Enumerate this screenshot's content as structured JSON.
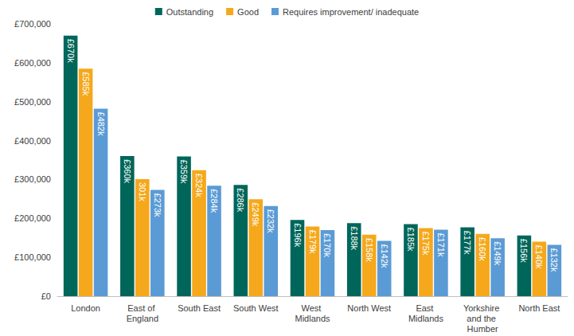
{
  "chart_data": {
    "type": "bar",
    "categories": [
      "London",
      "East of England",
      "South East",
      "South West",
      "West Midlands",
      "North West",
      "East Midlands",
      "Yorkshire and the Humber",
      "North East"
    ],
    "series": [
      {
        "name": "Outstanding",
        "color": "#00665a",
        "values": [
          670000,
          360000,
          359000,
          286000,
          196000,
          188000,
          185000,
          177000,
          156000
        ],
        "value_labels": [
          "£670k",
          "£360k",
          "£359k",
          "£286k",
          "£196k",
          "£188k",
          "£185k",
          "£177k",
          "£156k"
        ]
      },
      {
        "name": "Good",
        "color": "#f5a81c",
        "values": [
          585000,
          301000,
          324000,
          249000,
          179000,
          158000,
          175000,
          160000,
          140000
        ],
        "value_labels": [
          "£585k",
          "301k",
          "£324k",
          "£249k",
          "£179k",
          "£158k",
          "£175k",
          "£160k",
          "£140k"
        ]
      },
      {
        "name": "Requires improvement/ inadequate",
        "color": "#5b9bd5",
        "values": [
          482000,
          273000,
          284000,
          232000,
          170000,
          142000,
          171000,
          149000,
          132000
        ],
        "value_labels": [
          "£482k",
          "£273k",
          "£284k",
          "£232k",
          "£170k",
          "£142k",
          "£171k",
          "£149k",
          "£132k"
        ]
      }
    ],
    "ylim": [
      0,
      700000
    ],
    "yticks": [
      {
        "value": 0,
        "label": "£0"
      },
      {
        "value": 100000,
        "label": "£100,000"
      },
      {
        "value": 200000,
        "label": "£200,000"
      },
      {
        "value": 300000,
        "label": "£300,000"
      },
      {
        "value": 400000,
        "label": "£400,000"
      },
      {
        "value": 500000,
        "label": "£500,000"
      },
      {
        "value": 600000,
        "label": "£600,000"
      },
      {
        "value": 700000,
        "label": "£700,000"
      }
    ],
    "grid": false,
    "legend": "top",
    "data_labels": true
  }
}
